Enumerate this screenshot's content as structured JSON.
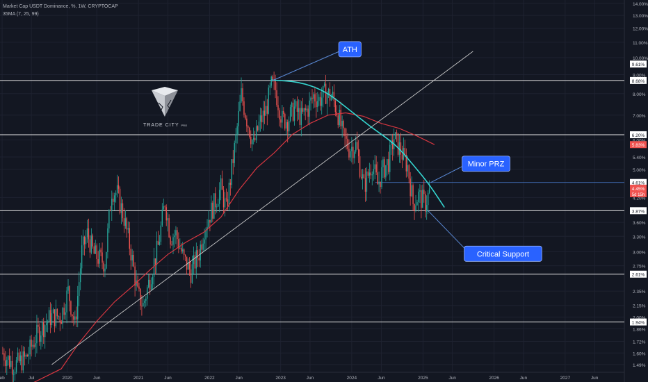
{
  "header": {
    "title": "Market Cap USDT Dominance, %, 1W, CRYPTOCAP",
    "indicator": "35MA (7, 25, 99)"
  },
  "brand": {
    "name": "TRADE CITY",
    "suffix": "PRO",
    "icon": "trade-city-logo-icon"
  },
  "colors": {
    "background": "#131722",
    "grid": "#1e2230",
    "up": "#26a69a",
    "down": "#ef5350",
    "ma": "#d63640",
    "arc": "#35d6d0",
    "trendline": "#c8c8c8",
    "level": "#e6e6e6",
    "callout_bg": "#2962ff",
    "axis_text": "#b2b5be"
  },
  "chart_data": {
    "type": "candlestick",
    "title": "Market Cap USDT Dominance, %, 1W, CRYPTOCAP",
    "scale": "log",
    "ylim": [
      1.42,
      14.3
    ],
    "xlim": [
      "2019-01-21",
      "2027-11-01"
    ],
    "grid": true,
    "y_ticks": [
      "14.00%",
      "13.00%",
      "12.00%",
      "11.00%",
      "10.00%",
      "9.00%",
      "8.00%",
      "7.00%",
      "6.00%",
      "5.40%",
      "5.00%",
      "4.20%",
      "3.60%",
      "3.30%",
      "3.00%",
      "2.75%",
      "2.35%",
      "2.15%",
      "2.00%",
      "1.86%",
      "1.72%",
      "1.60%",
      "1.49%"
    ],
    "x_ticks": [
      {
        "label": "eb",
        "date": "2019-02-01"
      },
      {
        "label": "Jul",
        "date": "2019-07-01"
      },
      {
        "label": "2020",
        "date": "2020-01-01"
      },
      {
        "label": "Jun",
        "date": "2020-06-01"
      },
      {
        "label": "2021",
        "date": "2021-01-01"
      },
      {
        "label": "Jun",
        "date": "2021-06-01"
      },
      {
        "label": "2022",
        "date": "2022-01-01"
      },
      {
        "label": "Jun",
        "date": "2022-06-01"
      },
      {
        "label": "2023",
        "date": "2023-01-01"
      },
      {
        "label": "Jun",
        "date": "2023-06-01"
      },
      {
        "label": "2024",
        "date": "2024-01-01"
      },
      {
        "label": "Jun",
        "date": "2024-06-01"
      },
      {
        "label": "2025",
        "date": "2025-01-01"
      },
      {
        "label": "Jun",
        "date": "2025-06-01"
      },
      {
        "label": "2026",
        "date": "2026-01-01"
      },
      {
        "label": "Jun",
        "date": "2026-06-01"
      },
      {
        "label": "2027",
        "date": "2027-01-01"
      },
      {
        "label": "Jun",
        "date": "2027-06-01"
      }
    ],
    "horizontal_levels": [
      {
        "label": "9.61%",
        "value": 9.61,
        "line": false
      },
      {
        "label": "8.68%",
        "value": 8.68,
        "line": true
      },
      {
        "label": "6.20%",
        "value": 6.2,
        "line": true
      },
      {
        "label": "4.61%",
        "value": 4.61,
        "line": false
      },
      {
        "label": "3.87%",
        "value": 3.87,
        "line": true
      },
      {
        "label": "2.61%",
        "value": 2.61,
        "line": true
      },
      {
        "label": "1.94%",
        "value": 1.94,
        "line": true
      }
    ],
    "price_tags": [
      {
        "label": "5.83%",
        "value": 5.83,
        "color": "#ef5350"
      },
      {
        "label": "4.45%",
        "sublabel": "5d 15h",
        "value": 4.45,
        "color": "#ef5350"
      }
    ],
    "ma_series": {
      "name": "35MA",
      "points": [
        [
          "2019-06-01",
          1.3
        ],
        [
          "2019-12-01",
          1.45
        ],
        [
          "2020-03-01",
          1.7
        ],
        [
          "2020-06-01",
          1.95
        ],
        [
          "2020-09-01",
          2.2
        ],
        [
          "2020-12-01",
          2.42
        ],
        [
          "2021-03-01",
          2.68
        ],
        [
          "2021-06-01",
          2.95
        ],
        [
          "2021-09-01",
          3.18
        ],
        [
          "2021-12-01",
          3.38
        ],
        [
          "2022-03-01",
          3.72
        ],
        [
          "2022-06-01",
          4.4
        ],
        [
          "2022-09-01",
          5.05
        ],
        [
          "2022-12-01",
          5.55
        ],
        [
          "2023-03-01",
          6.2
        ],
        [
          "2023-06-01",
          6.65
        ],
        [
          "2023-09-01",
          7.0
        ],
        [
          "2023-12-01",
          7.1
        ],
        [
          "2024-03-01",
          6.95
        ],
        [
          "2024-06-01",
          6.65
        ],
        [
          "2024-09-01",
          6.45
        ],
        [
          "2024-12-01",
          6.15
        ],
        [
          "2025-03-01",
          5.83
        ]
      ]
    },
    "candles": {
      "anchors": [
        [
          "2019-02-04",
          1.6
        ],
        [
          "2019-04-01",
          1.48
        ],
        [
          "2019-06-03",
          1.55
        ],
        [
          "2019-08-05",
          1.82
        ],
        [
          "2019-10-07",
          2.0
        ],
        [
          "2019-12-02",
          2.02
        ],
        [
          "2020-01-06",
          2.35
        ],
        [
          "2020-02-10",
          1.9
        ],
        [
          "2020-03-16",
          3.0
        ],
        [
          "2020-04-13",
          3.35
        ],
        [
          "2020-05-18",
          2.95
        ],
        [
          "2020-07-13",
          2.8
        ],
        [
          "2020-08-17",
          4.4
        ],
        [
          "2020-09-14",
          4.3
        ],
        [
          "2020-10-19",
          3.7
        ],
        [
          "2020-11-23",
          3.0
        ],
        [
          "2020-12-28",
          2.3
        ],
        [
          "2021-01-25",
          2.15
        ],
        [
          "2021-03-01",
          2.55
        ],
        [
          "2021-04-12",
          3.1
        ],
        [
          "2021-05-17",
          4.1
        ],
        [
          "2021-06-14",
          3.3
        ],
        [
          "2021-07-12",
          3.35
        ],
        [
          "2021-08-23",
          2.85
        ],
        [
          "2021-09-27",
          2.65
        ],
        [
          "2021-11-08",
          2.98
        ],
        [
          "2021-12-06",
          3.48
        ],
        [
          "2022-01-17",
          3.95
        ],
        [
          "2022-02-28",
          4.45
        ],
        [
          "2022-03-28",
          3.9
        ],
        [
          "2022-05-16",
          6.05
        ],
        [
          "2022-06-13",
          7.95
        ],
        [
          "2022-07-11",
          6.85
        ],
        [
          "2022-08-15",
          5.8
        ],
        [
          "2022-09-12",
          6.6
        ],
        [
          "2022-10-17",
          7.2
        ],
        [
          "2022-11-14",
          8.4
        ],
        [
          "2022-12-05",
          8.2
        ],
        [
          "2023-01-09",
          6.8
        ],
        [
          "2023-02-06",
          6.8
        ],
        [
          "2023-03-13",
          7.3
        ],
        [
          "2023-04-17",
          6.9
        ],
        [
          "2023-05-22",
          7.3
        ],
        [
          "2023-06-19",
          7.9
        ],
        [
          "2023-07-17",
          7.7
        ],
        [
          "2023-08-21",
          8.05
        ],
        [
          "2023-09-25",
          7.8
        ],
        [
          "2023-10-23",
          7.05
        ],
        [
          "2023-11-20",
          6.1
        ],
        [
          "2023-12-18",
          5.7
        ],
        [
          "2024-01-22",
          5.8
        ],
        [
          "2024-03-04",
          4.5
        ],
        [
          "2024-04-15",
          5.2
        ],
        [
          "2024-05-13",
          4.55
        ],
        [
          "2024-06-10",
          5.0
        ],
        [
          "2024-07-08",
          5.25
        ],
        [
          "2024-08-05",
          6.1
        ],
        [
          "2024-09-09",
          5.6
        ],
        [
          "2024-10-14",
          5.1
        ],
        [
          "2024-11-11",
          4.05
        ],
        [
          "2024-12-09",
          4.25
        ],
        [
          "2025-01-13",
          4.05
        ],
        [
          "2025-02-10",
          4.45
        ]
      ]
    },
    "trendline": {
      "from": [
        "2019-10-14",
        1.49
      ],
      "to": [
        "2025-09-15",
        10.4
      ]
    },
    "arc": {
      "points": [
        [
          "2022-11-14",
          8.7
        ],
        [
          "2023-04-03",
          8.62
        ],
        [
          "2023-08-14",
          8.15
        ],
        [
          "2023-12-11",
          7.3
        ],
        [
          "2024-04-08",
          6.5
        ],
        [
          "2024-08-12",
          5.85
        ],
        [
          "2024-11-11",
          5.15
        ],
        [
          "2025-02-03",
          4.55
        ],
        [
          "2025-04-21",
          3.95
        ]
      ]
    },
    "annotations": [
      {
        "text": "ATH",
        "point": [
          "2022-11-21",
          8.68
        ],
        "label_pos": "upper-right"
      },
      {
        "text": "Minor PRZ",
        "point": [
          "2025-02-10",
          4.61
        ],
        "label_pos": "right"
      },
      {
        "text": "Critical Support",
        "point": [
          "2025-01-27",
          3.87
        ],
        "label_pos": "lower-right"
      }
    ]
  }
}
